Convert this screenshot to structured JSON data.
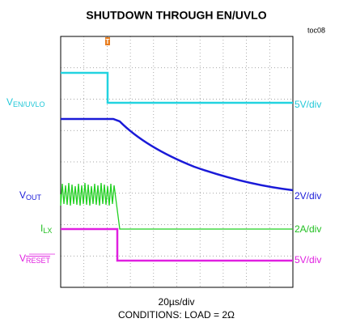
{
  "header": {
    "title": "SHUTDOWN THROUGH EN/UVLO",
    "tag": "toc08"
  },
  "traces": [
    {
      "symbol": "V",
      "subscript": "EN/UVLO",
      "scale": "5V/div"
    },
    {
      "symbol": "V",
      "subscript": "OUT",
      "scale": "2V/div"
    },
    {
      "symbol": "I",
      "subscript": "LX",
      "scale": "2A/div"
    },
    {
      "symbol": "V",
      "subscript": "RESET",
      "scale": "5V/div"
    }
  ],
  "timebase": "20µs/div",
  "conditions": "CONDITIONS: LOAD = 2Ω"
}
